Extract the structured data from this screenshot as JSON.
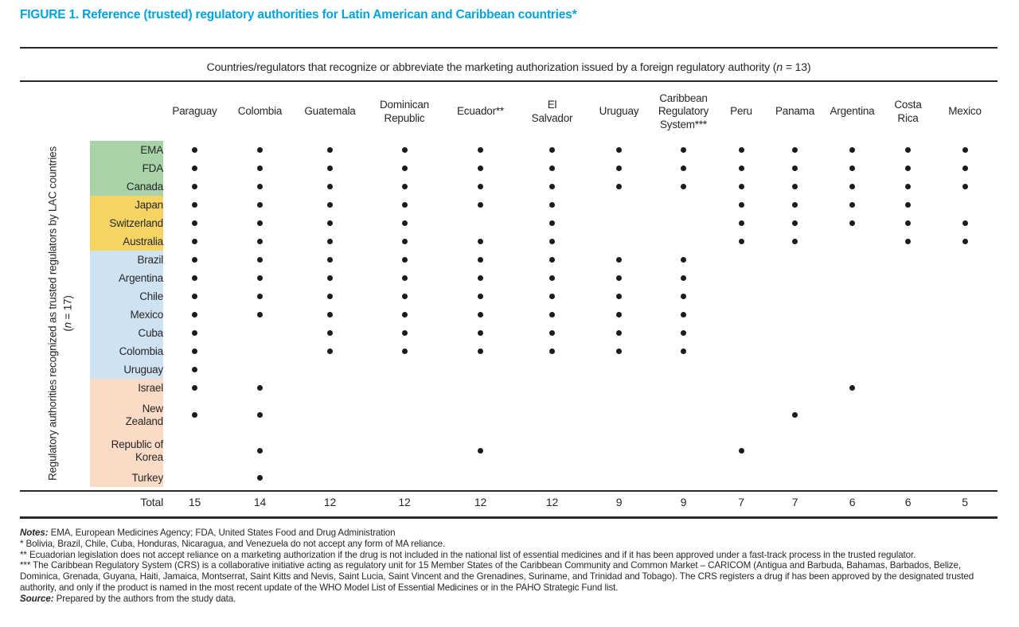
{
  "title": "FIGURE 1. Reference (trusted) regulatory authorities for Latin American and Caribbean countries*",
  "column_axis_title": "Countries/regulators that recognize or abbreviate the marketing authorization issued by a foreign regulatory authority (n = 13)",
  "row_axis_title": "Regulatory authorities recognized as trusted regulators by LAC countries (n = 17)",
  "total_label": "Total",
  "colors": {
    "title_accent": "#00a3dd",
    "dot": "#1c1c1c",
    "group_colors": {
      "green": "#a8d3a8",
      "yellow": "#f6d464",
      "blue": "#cfe2f1",
      "peach": "#fadbc5"
    }
  },
  "chart_data": {
    "type": "table",
    "title": "Reference (trusted) regulatory authorities for Latin American and Caribbean countries",
    "columns": [
      "Paraguay",
      "Colombia",
      "Guatemala",
      "Dominican\nRepublic",
      "Ecuador**",
      "El\nSalvador",
      "Uruguay",
      "Caribbean\nRegulatory\nSystem***",
      "Peru",
      "Panama",
      "Argentina",
      "Costa\nRica",
      "Mexico"
    ],
    "rows": [
      {
        "label": "EMA",
        "group": "green",
        "cells": [
          1,
          1,
          1,
          1,
          1,
          1,
          1,
          1,
          1,
          1,
          1,
          1,
          1
        ]
      },
      {
        "label": "FDA",
        "group": "green",
        "cells": [
          1,
          1,
          1,
          1,
          1,
          1,
          1,
          1,
          1,
          1,
          1,
          1,
          1
        ]
      },
      {
        "label": "Canada",
        "group": "green",
        "cells": [
          1,
          1,
          1,
          1,
          1,
          1,
          1,
          1,
          1,
          1,
          1,
          1,
          1
        ]
      },
      {
        "label": "Japan",
        "group": "yellow",
        "cells": [
          1,
          1,
          1,
          1,
          1,
          1,
          0,
          0,
          1,
          1,
          1,
          1,
          0
        ]
      },
      {
        "label": "Switzerland",
        "group": "yellow",
        "cells": [
          1,
          1,
          1,
          1,
          0,
          1,
          0,
          0,
          1,
          1,
          1,
          1,
          1
        ]
      },
      {
        "label": "Australia",
        "group": "yellow",
        "cells": [
          1,
          1,
          1,
          1,
          1,
          1,
          0,
          0,
          1,
          1,
          0,
          1,
          1
        ]
      },
      {
        "label": "Brazil",
        "group": "blue",
        "cells": [
          1,
          1,
          1,
          1,
          1,
          1,
          1,
          1,
          0,
          0,
          0,
          0,
          0
        ]
      },
      {
        "label": "Argentina",
        "group": "blue",
        "cells": [
          1,
          1,
          1,
          1,
          1,
          1,
          1,
          1,
          0,
          0,
          0,
          0,
          0
        ]
      },
      {
        "label": "Chile",
        "group": "blue",
        "cells": [
          1,
          1,
          1,
          1,
          1,
          1,
          1,
          1,
          0,
          0,
          0,
          0,
          0
        ]
      },
      {
        "label": "Mexico",
        "group": "blue",
        "cells": [
          1,
          1,
          1,
          1,
          1,
          1,
          1,
          1,
          0,
          0,
          0,
          0,
          0
        ]
      },
      {
        "label": "Cuba",
        "group": "blue",
        "cells": [
          1,
          0,
          1,
          1,
          1,
          1,
          1,
          1,
          0,
          0,
          0,
          0,
          0
        ]
      },
      {
        "label": "Colombia",
        "group": "blue",
        "cells": [
          1,
          0,
          1,
          1,
          1,
          1,
          1,
          1,
          0,
          0,
          0,
          0,
          0
        ]
      },
      {
        "label": "Uruguay",
        "group": "blue",
        "cells": [
          1,
          0,
          0,
          0,
          0,
          0,
          0,
          0,
          0,
          0,
          0,
          0,
          0
        ]
      },
      {
        "label": "Israel",
        "group": "peach",
        "cells": [
          1,
          1,
          0,
          0,
          0,
          0,
          0,
          0,
          0,
          0,
          1,
          0,
          0
        ]
      },
      {
        "label": "New\nZealand",
        "group": "peach",
        "cells": [
          1,
          1,
          0,
          0,
          0,
          0,
          0,
          0,
          0,
          1,
          0,
          0,
          0
        ]
      },
      {
        "label": "Republic of\nKorea",
        "group": "peach",
        "cells": [
          0,
          1,
          0,
          0,
          1,
          0,
          0,
          0,
          1,
          0,
          0,
          0,
          0
        ]
      },
      {
        "label": "Turkey",
        "group": "peach",
        "cells": [
          0,
          1,
          0,
          0,
          0,
          0,
          0,
          0,
          0,
          0,
          0,
          0,
          0
        ]
      }
    ],
    "totals": [
      15,
      14,
      12,
      12,
      12,
      12,
      9,
      9,
      7,
      7,
      6,
      6,
      5
    ]
  },
  "notes": [
    {
      "prefix": "Notes:",
      "text": " EMA, European Medicines Agency; FDA, United States Food and Drug Administration"
    },
    {
      "prefix": "",
      "text": "* Bolivia, Brazil, Chile, Cuba, Honduras, Nicaragua, and Venezuela do not accept any form of MA reliance."
    },
    {
      "prefix": "",
      "text": "** Ecuadorian legislation does not accept reliance on a marketing authorization if the drug is not included in the national list of essential medicines and if it has been approved under a fast-track process in the trusted regulator."
    },
    {
      "prefix": "",
      "text": "*** The Caribbean Regulatory System (CRS) is a collaborative initiative acting as regulatory unit for 15 Member States of the Caribbean Community and Common Market – CARICOM (Antigua and Barbuda, Bahamas, Barbados, Belize, Dominica, Grenada, Guyana, Haiti, Jamaica, Montserrat, Saint Kitts and Nevis, Saint Lucia, Saint Vincent and the Grenadines, Suriname, and Trinidad and Tobago). The CRS registers a drug if has been approved by the designated trusted authority, and only if the product is named in the most recent update of the WHO Model List of Essential Medicines or in the PAHO Strategic Fund list."
    },
    {
      "prefix": "Source:",
      "text": " Prepared by the authors from the study data."
    }
  ]
}
